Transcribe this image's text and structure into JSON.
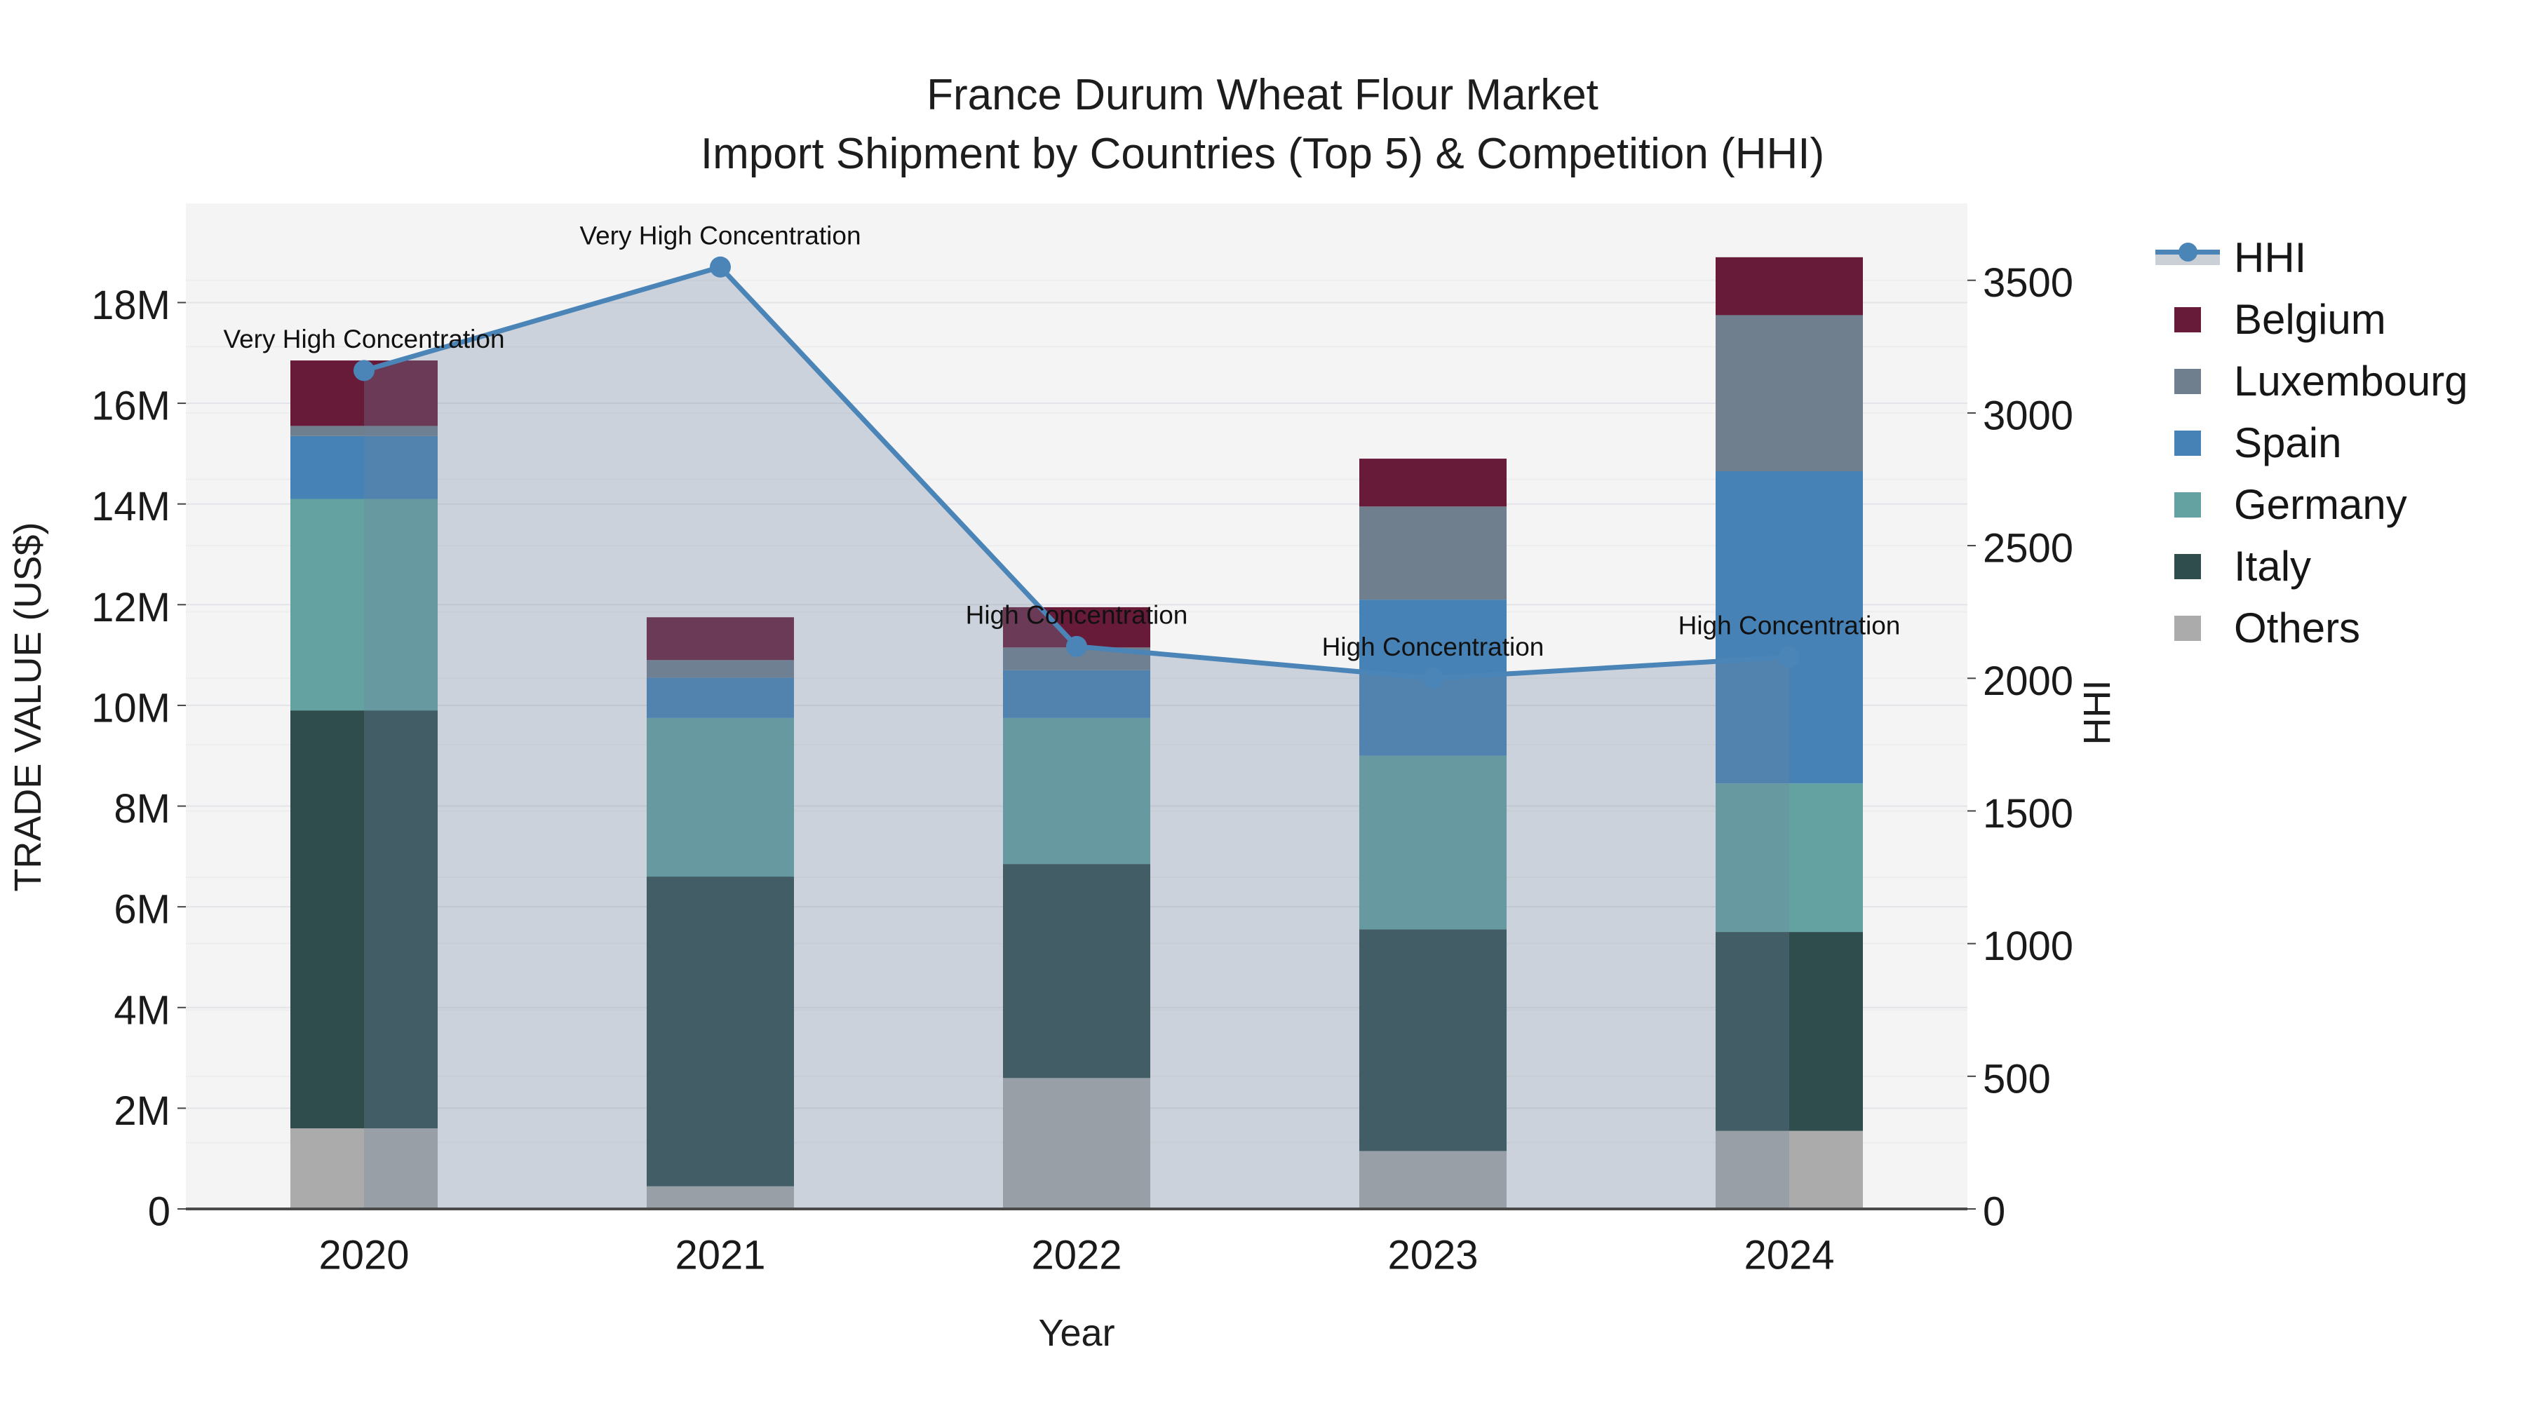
{
  "title": {
    "line1": "France Durum Wheat Flour Market",
    "line2": "Import Shipment by Countries (Top 5) & Competition (HHI)"
  },
  "axes": {
    "y_left": {
      "title": "TRADE VALUE (US$)",
      "tick_labels": [
        "0",
        "2M",
        "4M",
        "6M",
        "8M",
        "10M",
        "12M",
        "14M",
        "16M",
        "18M"
      ],
      "tick_values": [
        0,
        2,
        4,
        6,
        8,
        10,
        12,
        14,
        16,
        18
      ],
      "range_millions": [
        0,
        19.97
      ]
    },
    "y_right": {
      "title": "HHI",
      "tick_labels": [
        "0",
        "500",
        "1000",
        "1500",
        "2000",
        "2500",
        "3000",
        "3500"
      ],
      "tick_values": [
        0,
        500,
        1000,
        1500,
        2000,
        2500,
        3000,
        3500
      ],
      "range": [
        0,
        3790
      ]
    },
    "x": {
      "title": "Year",
      "categories": [
        "2020",
        "2021",
        "2022",
        "2023",
        "2024"
      ]
    }
  },
  "legend": {
    "items": [
      {
        "label": "HHI",
        "type": "line",
        "color": "#4b85b8"
      },
      {
        "label": "Belgium",
        "type": "swatch",
        "color": "#681a39"
      },
      {
        "label": "Luxembourg",
        "type": "swatch",
        "color": "#6f7f8d"
      },
      {
        "label": "Spain",
        "type": "swatch",
        "color": "#4682b5"
      },
      {
        "label": "Germany",
        "type": "swatch",
        "color": "#63a2a1"
      },
      {
        "label": "Italy",
        "type": "swatch",
        "color": "#2f4d4c"
      },
      {
        "label": "Others",
        "type": "swatch",
        "color": "#ababab"
      }
    ]
  },
  "chart_data": {
    "type": "combo_stacked_bar_line",
    "categories": [
      "2020",
      "2021",
      "2022",
      "2023",
      "2024"
    ],
    "bar_value_unit": "millions US$",
    "bar_series_bottom_to_top": [
      {
        "name": "Others",
        "color": "#ababab",
        "values": [
          1.6,
          0.45,
          2.6,
          1.15,
          1.55
        ]
      },
      {
        "name": "Italy",
        "color": "#2f4d4c",
        "values": [
          8.3,
          6.15,
          4.25,
          4.4,
          3.95
        ]
      },
      {
        "name": "Germany",
        "color": "#63a2a1",
        "values": [
          4.2,
          3.15,
          2.9,
          3.45,
          2.95
        ]
      },
      {
        "name": "Spain",
        "color": "#4682b5",
        "values": [
          1.25,
          0.8,
          0.95,
          3.1,
          6.2
        ]
      },
      {
        "name": "Luxembourg",
        "color": "#6f7f8d",
        "values": [
          0.2,
          0.35,
          0.45,
          1.85,
          3.1
        ]
      },
      {
        "name": "Belgium",
        "color": "#681a39",
        "values": [
          1.3,
          0.85,
          0.8,
          0.95,
          1.15
        ]
      }
    ],
    "bar_totals_millions": [
      16.85,
      11.75,
      11.95,
      14.9,
      18.9
    ],
    "line_series": {
      "name": "HHI",
      "axis": "right",
      "color": "#4b85b8",
      "fill_color": "rgba(112,132,159,0.30)",
      "values": [
        3160,
        3550,
        2120,
        2000,
        2080
      ]
    },
    "annotations": [
      "Very High Concentration",
      "Very High Concentration",
      "High Concentration",
      "High Concentration",
      "High Concentration"
    ],
    "title": "France Durum Wheat Flour Market",
    "subtitle": "Import Shipment by Countries (Top 5) & Competition (HHI)",
    "xlabel": "Year",
    "ylabel_left": "TRADE VALUE (US$)",
    "ylabel_right": "HHI",
    "grid": true,
    "legend_position": "right"
  }
}
